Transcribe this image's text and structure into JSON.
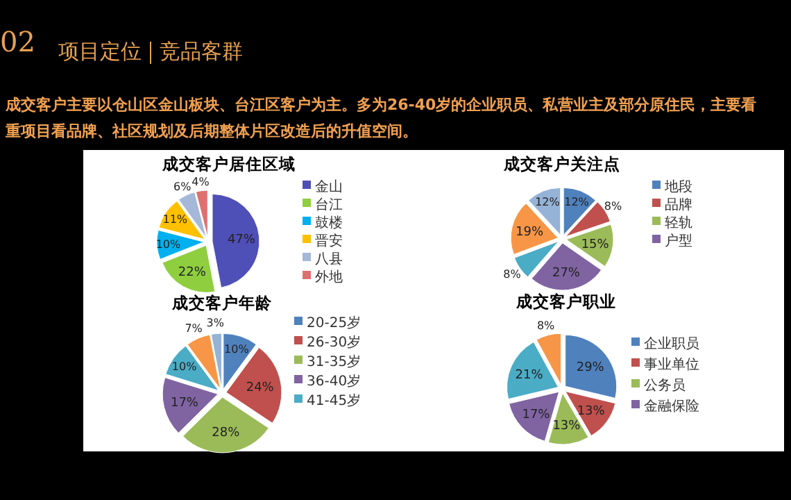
{
  "chart_data": [
    {
      "type": "other",
      "title": "项目定位",
      "subtitle": "竞品客群",
      "annotations": [
        "02",
        "成交客户主要以仓山区金山板块、台江区客户为主。多为26-40岁的企业职员、私营业主及部分原住民，主要看重项目看品牌、社区规划及后期整体片区改造后的升值空间。"
      ]
    },
    {
      "type": "pie",
      "title": "成交客户居住区域",
      "categories": [
        "金山",
        "台江",
        "鼓楼",
        "晋安",
        "八县",
        "外地"
      ],
      "values": [
        47,
        22,
        10,
        11,
        6,
        4
      ],
      "value_labels": [
        "47%",
        "22%",
        "10%",
        "11%",
        "6%",
        "4%"
      ],
      "colors": [
        "#4f4fb8",
        "#8fcf3f",
        "#00b0f0",
        "#ffc000",
        "#a6b8d8",
        "#e07070"
      ],
      "legend": "right"
    },
    {
      "type": "pie",
      "title": "成交客户关注点",
      "categories": [
        "地段",
        "品牌",
        "轻轨",
        "户型",
        null,
        null,
        null
      ],
      "values": [
        12,
        8,
        15,
        27,
        8,
        19,
        12
      ],
      "value_labels": [
        "12%",
        "8%",
        "15%",
        "27%",
        "8%",
        "19%",
        "12%"
      ],
      "colors": [
        "#4f81bd",
        "#c0504d",
        "#9bbb59",
        "#8064a2",
        "#4bacc6",
        "#f79646",
        "#95b3d7"
      ],
      "legend": "right"
    },
    {
      "type": "pie",
      "title": "成交客户年龄",
      "categories": [
        "20-25岁",
        "26-30岁",
        "31-35岁",
        "36-40岁",
        "41-45岁",
        null,
        null
      ],
      "values": [
        10,
        24,
        28,
        17,
        10,
        7,
        3
      ],
      "value_labels": [
        "10%",
        "24%",
        "28%",
        "17%",
        "10%",
        "7%",
        "3%"
      ],
      "colors": [
        "#4f81bd",
        "#c0504d",
        "#9bbb59",
        "#8064a2",
        "#4bacc6",
        "#f79646",
        "#95b3d7"
      ],
      "legend": "right"
    },
    {
      "type": "pie",
      "title": "成交客户职业",
      "categories": [
        "企业职员",
        "事业单位",
        "公务员",
        "金融保险",
        null,
        null
      ],
      "values": [
        29,
        13,
        13,
        17,
        21,
        8
      ],
      "value_labels": [
        "29%",
        "13%",
        "13%",
        "17%",
        "21%",
        "8%"
      ],
      "colors": [
        "#4f81bd",
        "#c0504d",
        "#9bbb59",
        "#8064a2",
        "#4bacc6",
        "#f79646"
      ],
      "legend": "right"
    }
  ]
}
